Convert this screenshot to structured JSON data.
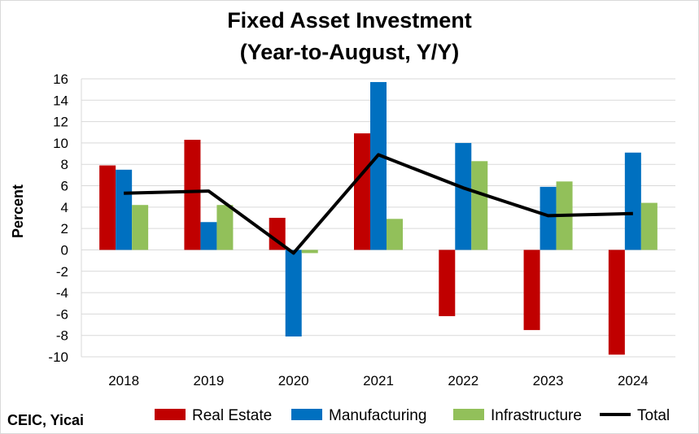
{
  "chart_data": {
    "type": "bar",
    "title": "Fixed Asset Investment",
    "subtitle": "(Year-to-August, Y/Y)",
    "ylabel": "Percent",
    "xlabel": "",
    "ylim": [
      -10,
      16
    ],
    "yticks": [
      16,
      14,
      12,
      10,
      8,
      6,
      4,
      2,
      0,
      -2,
      -4,
      -6,
      -8,
      -10
    ],
    "grid": true,
    "legend_position": "bottom",
    "categories": [
      "2018",
      "2019",
      "2020",
      "2021",
      "2022",
      "2023",
      "2024"
    ],
    "series": [
      {
        "name": "Real Estate",
        "kind": "bar",
        "color": "#c00000",
        "values": [
          7.9,
          10.3,
          3.0,
          10.9,
          -6.2,
          -7.5,
          -9.8
        ]
      },
      {
        "name": "Manufacturing",
        "kind": "bar",
        "color": "#0070c0",
        "values": [
          7.5,
          2.6,
          -8.1,
          15.7,
          10.0,
          5.9,
          9.1
        ]
      },
      {
        "name": "Infrastructure",
        "kind": "bar",
        "color": "#92c05a",
        "values": [
          4.2,
          4.2,
          -0.3,
          2.9,
          8.3,
          6.4,
          4.4
        ]
      },
      {
        "name": "Total",
        "kind": "line",
        "color": "#000000",
        "values": [
          5.3,
          5.5,
          -0.3,
          8.9,
          5.8,
          3.2,
          3.4
        ]
      }
    ]
  },
  "source": "CEIC, Yicai"
}
